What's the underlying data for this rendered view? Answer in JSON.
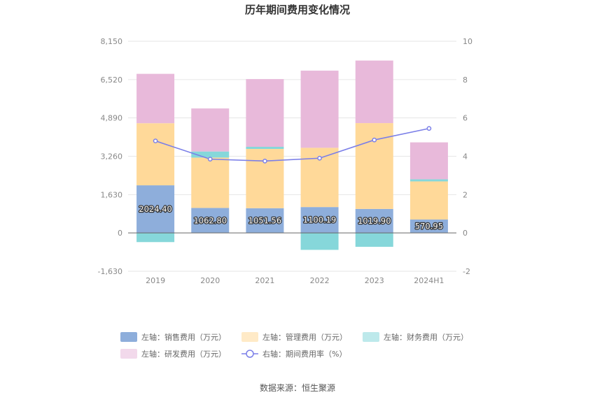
{
  "chart_data": {
    "type": "bar",
    "title": "历年期间费用变化情况",
    "source": "数据来源：恒生聚源",
    "categories": [
      "2019",
      "2020",
      "2021",
      "2022",
      "2023",
      "2024H1"
    ],
    "left_axis": {
      "ylim": [
        -1630,
        8150
      ],
      "ticks": [
        "-1,630",
        "0",
        "1,630",
        "3,260",
        "4,890",
        "6,520",
        "8,150"
      ],
      "tick_values": [
        -1630,
        0,
        1630,
        3260,
        4890,
        6520,
        8150
      ]
    },
    "right_axis": {
      "ylim": [
        -2,
        10
      ],
      "ticks": [
        "-2",
        "0",
        "2",
        "4",
        "6",
        "8",
        "10"
      ],
      "tick_values": [
        -2,
        0,
        2,
        4,
        6,
        8,
        10
      ]
    },
    "grid": true,
    "legend_position": "bottom",
    "series": [
      {
        "name": "左轴：销售费用（万元）",
        "type": "bar",
        "axis": "left",
        "color": "#8eaedb",
        "values": [
          2024.4,
          1062.8,
          1051.56,
          1100.19,
          1019.9,
          570.95
        ],
        "labels": [
          "2024.40",
          "1062.80",
          "1051.56",
          "1100.19",
          "1019.90",
          "570.95"
        ]
      },
      {
        "name": "左轴：管理费用（万元）",
        "type": "bar",
        "axis": "left",
        "color": "#ffd999",
        "values": [
          2640,
          2140,
          2520,
          2520,
          3650,
          1620
        ]
      },
      {
        "name": "左轴：财务费用（万元）",
        "type": "bar",
        "axis": "left",
        "color": "#86d7da",
        "values": [
          -390,
          260,
          90,
          -720,
          -590,
          90
        ]
      },
      {
        "name": "左轴：研发费用（万元）",
        "type": "bar",
        "axis": "left",
        "color": "#e8b9da",
        "values": [
          2100,
          1830,
          2880,
          3280,
          2660,
          1570
        ]
      },
      {
        "name": "右轴：期间费用率（%）",
        "type": "line",
        "axis": "right",
        "color": "#7b7fe8",
        "values": [
          4.8,
          3.85,
          3.75,
          3.9,
          4.85,
          5.45
        ]
      }
    ]
  }
}
